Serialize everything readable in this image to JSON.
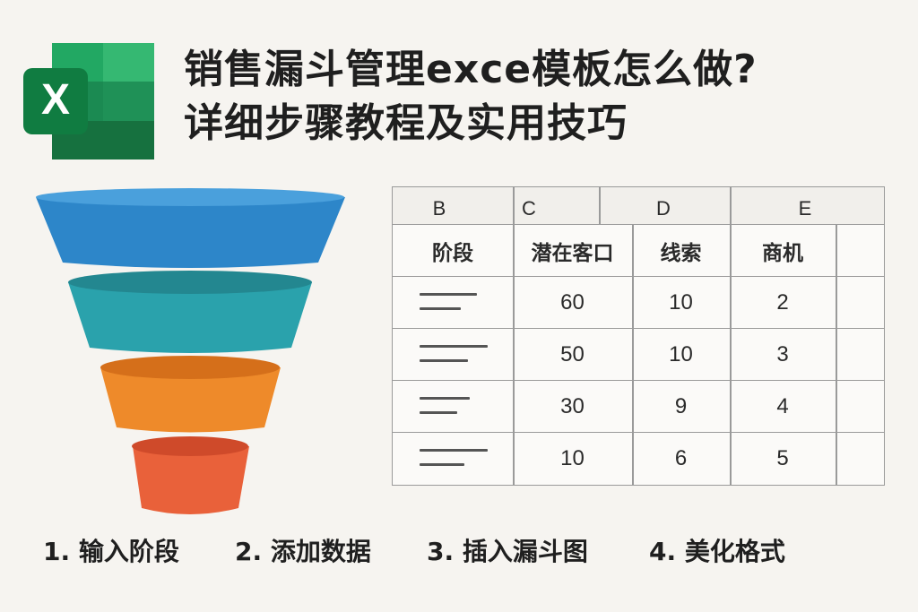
{
  "logo": {
    "letter": "X",
    "name": "excel-logo",
    "brand_color": "#1e7a45"
  },
  "title": {
    "line1": "销售漏斗管理exce模板怎么做?",
    "line2": "详细步骤教程及实用技巧"
  },
  "funnel": {
    "stages": 4,
    "colors": [
      "#2d86c9",
      "#2aa2ac",
      "#ee8a2a",
      "#e9613a"
    ]
  },
  "sheet": {
    "columns": [
      "B",
      "C",
      "D",
      "E"
    ],
    "headers": [
      "阶段",
      "潜在客口",
      "线索",
      "商机"
    ],
    "rows": [
      {
        "c": "60",
        "d": "10",
        "e": "2"
      },
      {
        "c": "50",
        "d": "10",
        "e": "3"
      },
      {
        "c": "30",
        "d": "9",
        "e": "4"
      },
      {
        "c": "10",
        "d": "6",
        "e": "5"
      }
    ]
  },
  "steps": [
    "1. 输入阶段",
    "2. 添加数据",
    "3. 插入漏斗图",
    "4. 美化格式"
  ]
}
